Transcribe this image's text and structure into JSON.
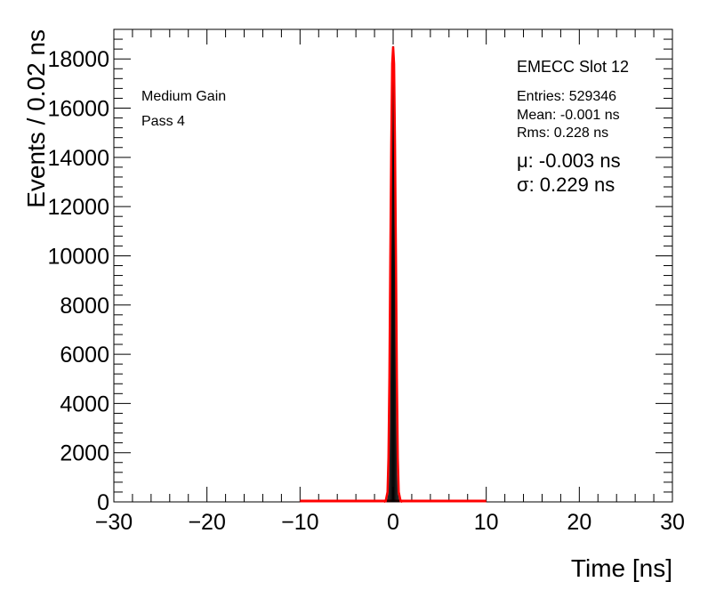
{
  "chart_data": {
    "type": "histogram",
    "xlabel": "Time [ns]",
    "ylabel": "Events / 0.02 ns",
    "xlim": [
      -30,
      30
    ],
    "ylim": [
      0,
      19200
    ],
    "x_ticks": [
      -30,
      -20,
      -10,
      0,
      10,
      20,
      30
    ],
    "y_ticks": [
      0,
      2000,
      4000,
      6000,
      8000,
      10000,
      12000,
      14000,
      16000,
      18000
    ],
    "x_tick_labels": [
      "−30",
      "−20",
      "−10",
      "0",
      "10",
      "20",
      "30"
    ],
    "y_tick_labels": [
      "0",
      "2000",
      "4000",
      "6000",
      "8000",
      "10000",
      "12000",
      "14000",
      "16000",
      "18000"
    ],
    "grid": false,
    "line_color": "#ff0000",
    "fit_range": [
      -10,
      10
    ],
    "series": [
      {
        "x": [
          -1.0,
          -0.8,
          -0.6,
          -0.5,
          -0.4,
          -0.3,
          -0.2,
          -0.1,
          0.0,
          0.1,
          0.2,
          0.3,
          0.4,
          0.5,
          0.6,
          0.8,
          1.0
        ],
        "y": [
          0,
          40,
          400,
          1800,
          5000,
          10000,
          14500,
          17800,
          18500,
          17800,
          14500,
          10000,
          5000,
          1800,
          400,
          40,
          0
        ]
      }
    ],
    "title": "EMECC Slot 12",
    "stats": {
      "entries": "Entries: 529346",
      "mean": "Mean: -0.001 ns",
      "rms": "Rms: 0.228 ns"
    },
    "fit": {
      "mu": "μ: -0.003 ns",
      "sigma": "σ: 0.229 ns"
    },
    "annotations": [
      "Medium Gain",
      "Pass 4"
    ]
  }
}
